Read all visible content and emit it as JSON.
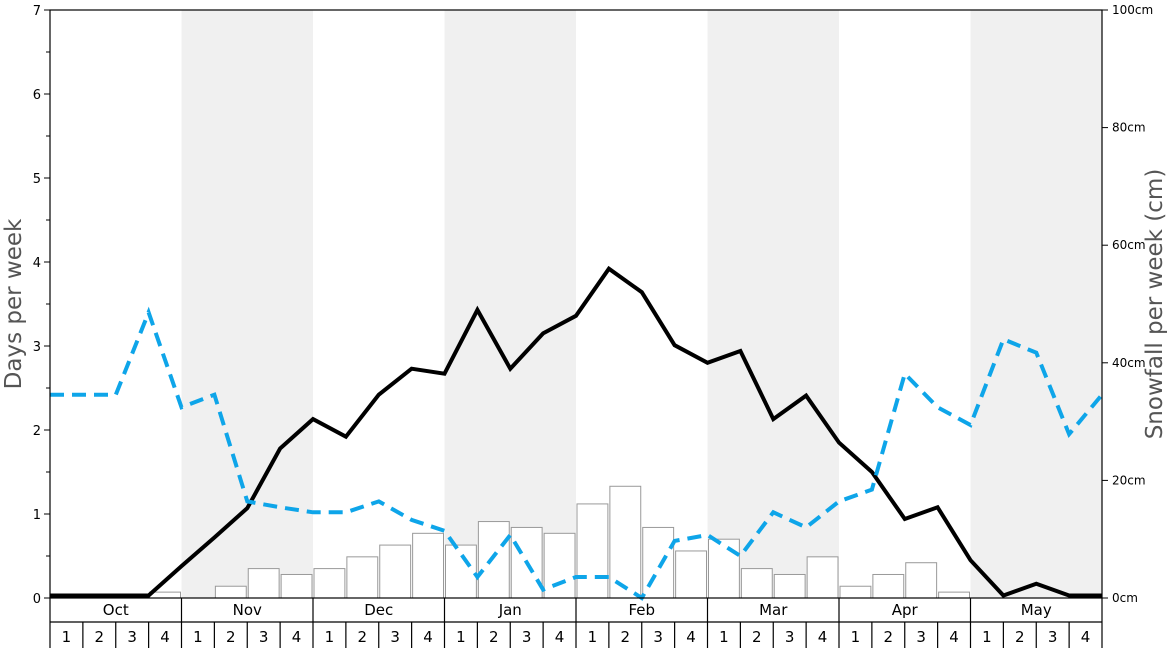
{
  "chart_data": {
    "type": "bar+line",
    "ylabel_left": "Days per week",
    "ylabel_right": "Snowfall per week (cm)",
    "ylim_left": [
      0,
      7
    ],
    "ylim_right": [
      0,
      100
    ],
    "left_ticks": [
      "0",
      "1",
      "2",
      "3",
      "4",
      "5",
      "6",
      "7"
    ],
    "right_ticks": [
      "0cm",
      "20cm",
      "40cm",
      "60cm",
      "80cm",
      "100cm"
    ],
    "months": [
      "Oct",
      "Nov",
      "Dec",
      "Jan",
      "Feb",
      "Mar",
      "Apr",
      "May"
    ],
    "weeks": [
      "1",
      "2",
      "3",
      "4"
    ],
    "colors": {
      "bar_fill": "#ffffff",
      "bar_stroke": "#999999",
      "solid_line": "#000000",
      "dashed_line": "#0ea5e9",
      "band": "#f0f0f0"
    },
    "series": [
      {
        "type": "bar",
        "axis": "right",
        "values": [
          0,
          0,
          0,
          1,
          0,
          2,
          5,
          4,
          5,
          7,
          9,
          11,
          9,
          13,
          12,
          11,
          16,
          19,
          12,
          8,
          10,
          5,
          4,
          7,
          2,
          4,
          6,
          1,
          0,
          0,
          0,
          0
        ]
      },
      {
        "type": "line",
        "axis": "left",
        "style": "solid",
        "values": [
          0.03,
          0.03,
          0.03,
          0.03,
          0.38,
          0.72,
          1.07,
          1.78,
          2.13,
          1.92,
          2.42,
          2.73,
          2.67,
          3.43,
          2.73,
          3.15,
          3.36,
          3.92,
          3.64,
          3.01,
          2.8,
          2.94,
          2.13,
          2.41,
          1.85,
          1.5,
          0.94,
          1.08,
          0.45,
          0.03,
          0.17,
          0.03,
          0.03
        ]
      },
      {
        "type": "line",
        "axis": "left",
        "style": "dashed",
        "values": [
          2.42,
          2.42,
          2.42,
          3.4,
          2.27,
          2.42,
          1.15,
          1.08,
          1.02,
          1.02,
          1.15,
          0.93,
          0.8,
          0.25,
          0.75,
          0.1,
          0.25,
          0.25,
          0.0,
          0.68,
          0.75,
          0.5,
          1.02,
          0.84,
          1.15,
          1.29,
          2.67,
          2.27,
          2.06,
          3.08,
          2.92,
          1.95,
          2.42
        ]
      }
    ]
  }
}
